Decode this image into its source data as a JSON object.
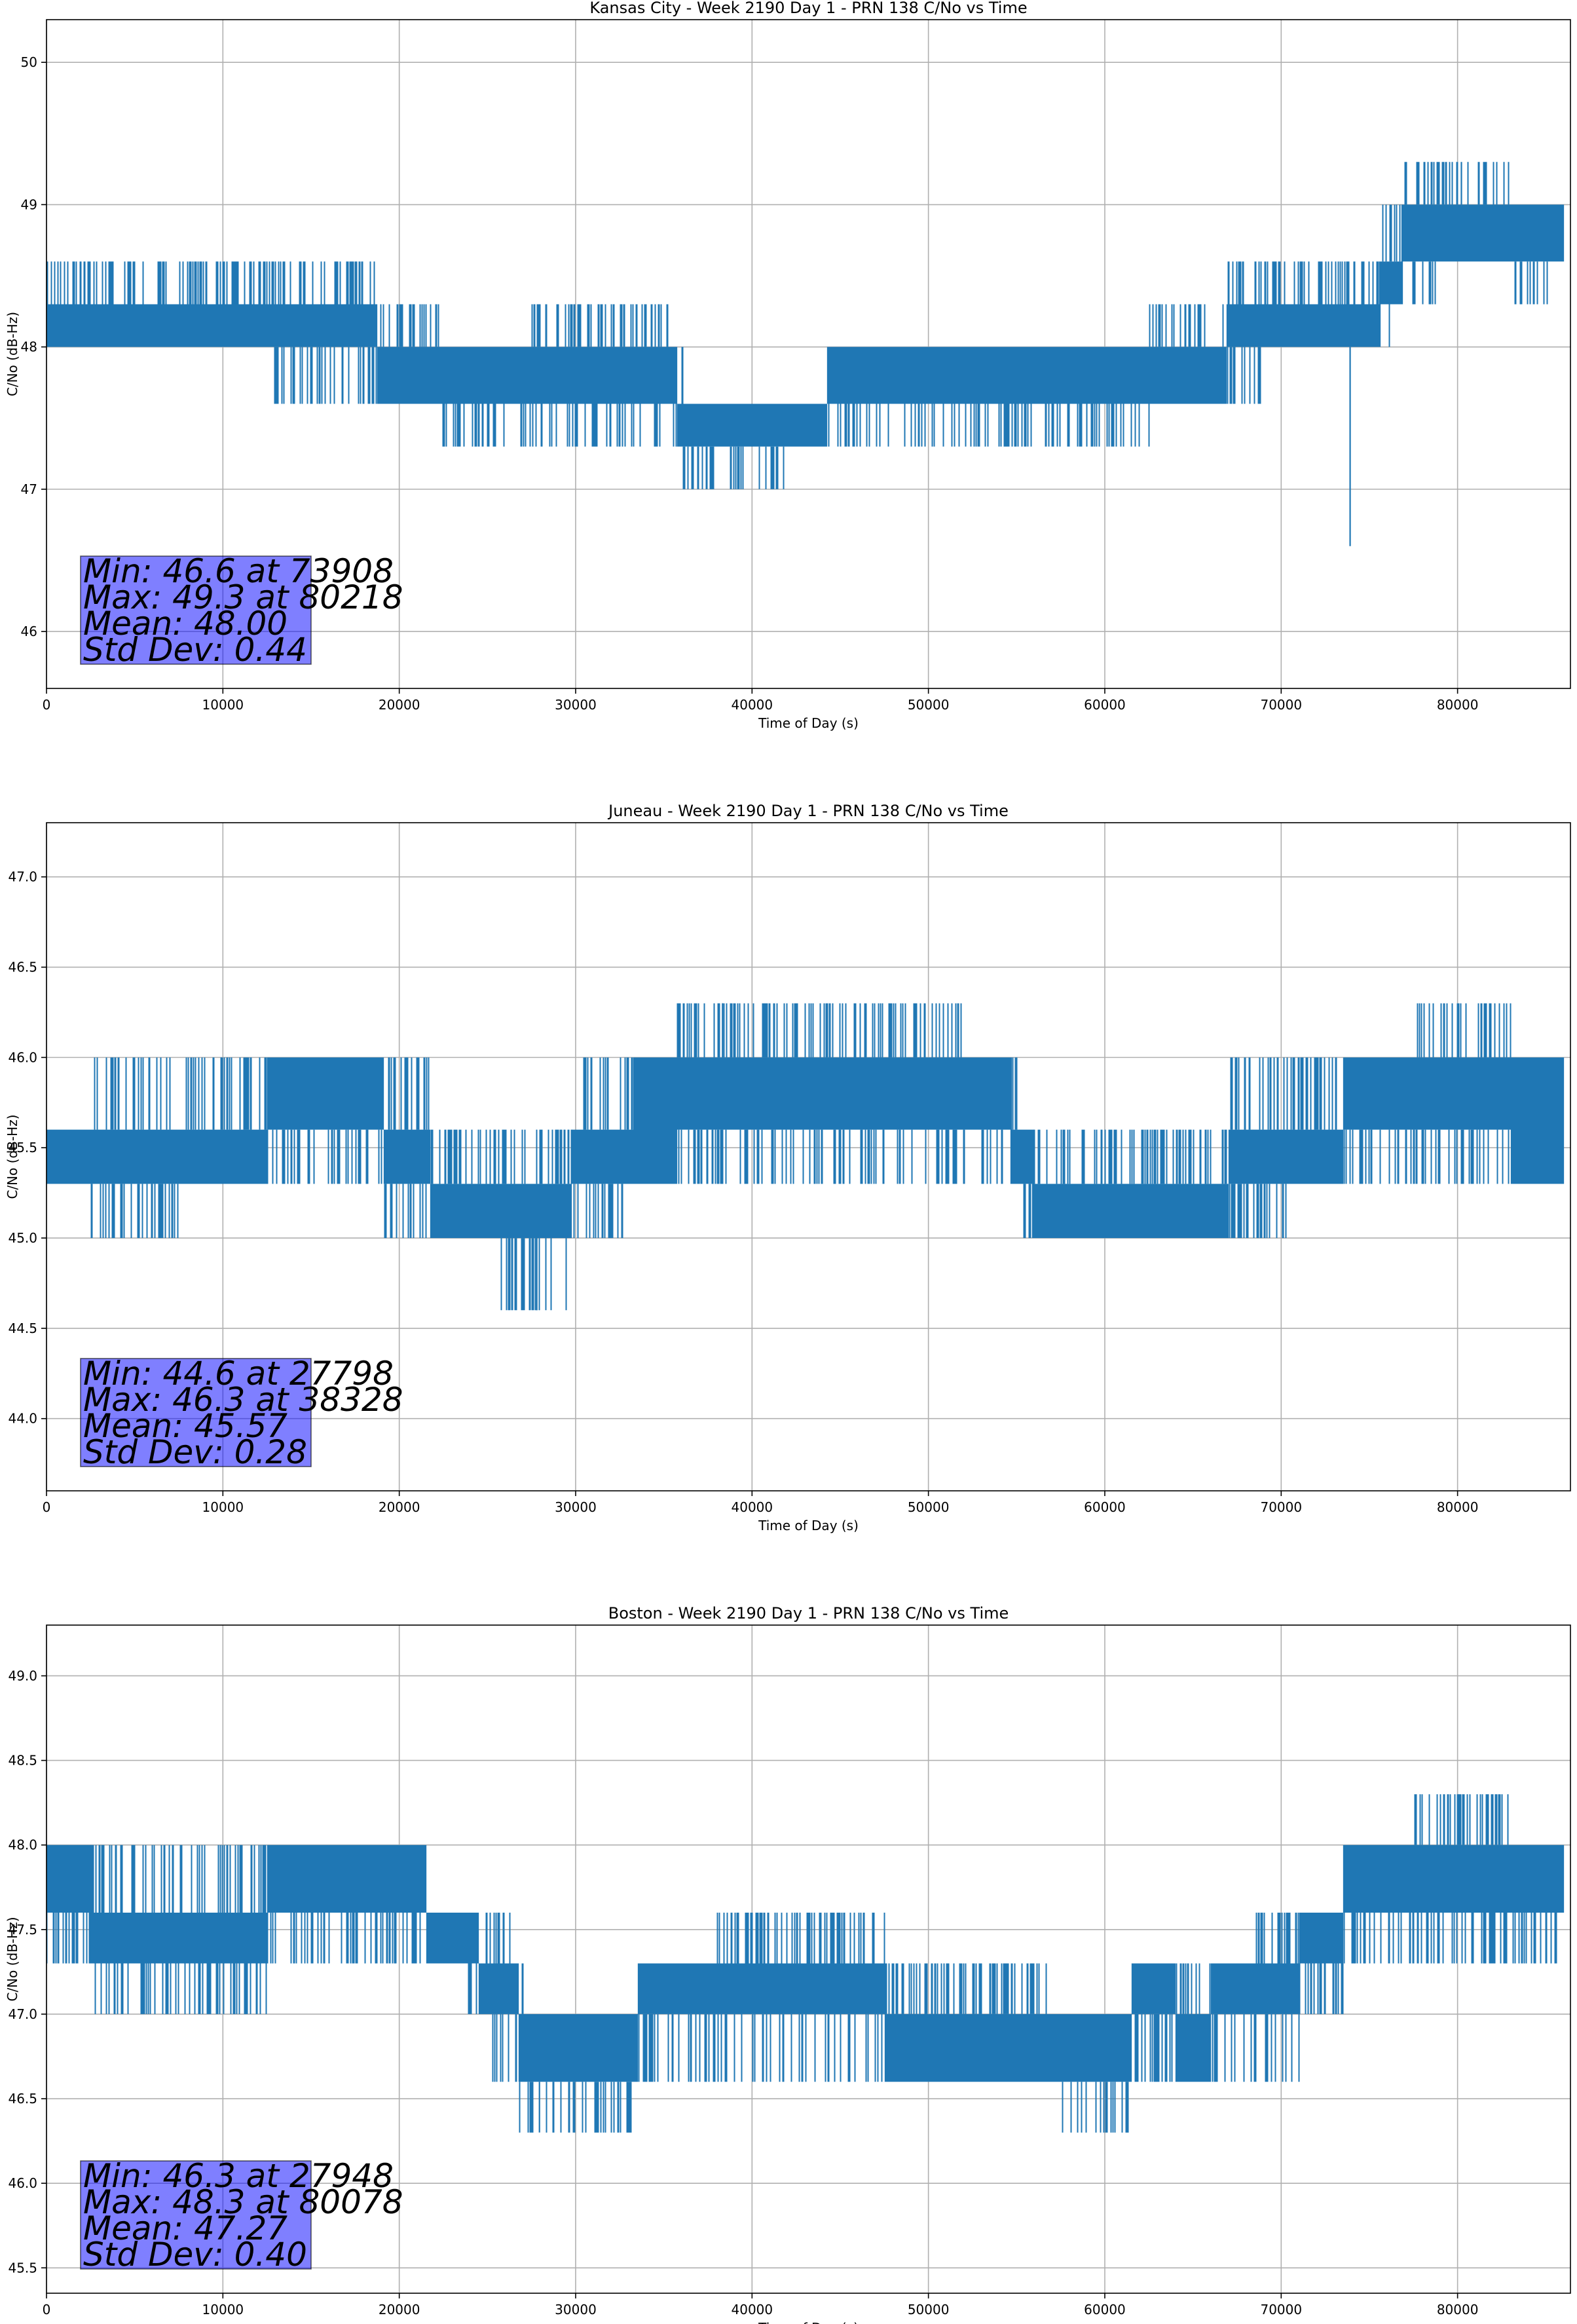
{
  "figure": {
    "series_color": "#1f77b4",
    "stat_box_color": "#0000ff"
  },
  "chart_data": [
    {
      "type": "line",
      "title": "Kansas City - Week 2190 Day 1 - PRN 138 C/No vs Time",
      "xlabel": "Time of Day (s)",
      "ylabel": "C/No (dB-Hz)",
      "xlim": [
        0,
        86400
      ],
      "ylim": [
        45.6,
        50.3
      ],
      "grid": true,
      "x_ticks": [
        0,
        10000,
        20000,
        30000,
        40000,
        50000,
        60000,
        70000,
        80000
      ],
      "x_tick_labels": [
        "0",
        "10000",
        "20000",
        "30000",
        "40000",
        "50000",
        "60000",
        "70000",
        "80000"
      ],
      "y_ticks": [
        46,
        47,
        48,
        49,
        50
      ],
      "y_tick_labels": [
        "46",
        "47",
        "48",
        "49",
        "50"
      ],
      "quantum": 0.3,
      "series_summary": {
        "x": [
          0,
          5000,
          10000,
          15000,
          18000,
          19500,
          25000,
          30000,
          35000,
          36500,
          40000,
          44000,
          44500,
          50000,
          55000,
          60000,
          65000,
          68800,
          70000,
          75000,
          77500,
          80000,
          86000
        ],
        "band_low": [
          48.0,
          48.0,
          48.0,
          48.0,
          48.0,
          47.6,
          47.6,
          47.6,
          47.6,
          47.3,
          47.3,
          47.3,
          47.6,
          47.6,
          47.6,
          47.6,
          47.6,
          48.0,
          48.0,
          48.0,
          48.6,
          48.6,
          48.6
        ],
        "band_high": [
          48.3,
          48.3,
          48.3,
          48.3,
          48.3,
          48.0,
          48.0,
          48.0,
          48.0,
          47.6,
          47.6,
          47.6,
          48.0,
          48.0,
          48.0,
          48.0,
          48.0,
          48.3,
          48.3,
          48.3,
          49.0,
          49.0,
          49.0
        ],
        "spike_high": [
          48.6,
          48.6,
          48.6,
          48.6,
          48.6,
          48.3,
          48.0,
          48.3,
          48.3,
          47.6,
          47.6,
          47.6,
          48.0,
          48.0,
          48.0,
          48.0,
          48.3,
          48.6,
          48.6,
          48.6,
          49.3,
          49.3,
          49.0
        ],
        "spike_low": [
          48.0,
          48.0,
          48.0,
          47.6,
          47.6,
          47.6,
          47.3,
          47.3,
          47.3,
          47.0,
          47.0,
          47.3,
          47.3,
          47.3,
          47.3,
          47.3,
          47.6,
          47.6,
          48.0,
          48.0,
          48.3,
          48.6,
          48.3
        ]
      },
      "min": {
        "value": 46.6,
        "x": 73908
      },
      "max": {
        "value": 49.3,
        "x": 80218
      },
      "stats": {
        "min_line": "Min: 46.6 at 73908",
        "max_line": "Max: 49.3 at 80218",
        "mean_line": "Mean: 48.00",
        "std_line": "Std Dev: 0.44"
      }
    },
    {
      "type": "line",
      "title": "Juneau - Week 2190 Day 1 - PRN 138 C/No vs Time",
      "xlabel": "Time of Day (s)",
      "ylabel": "C/No (dB-Hz)",
      "xlim": [
        0,
        86400
      ],
      "ylim": [
        43.6,
        47.3
      ],
      "grid": true,
      "x_ticks": [
        0,
        10000,
        20000,
        30000,
        40000,
        50000,
        60000,
        70000,
        80000
      ],
      "x_tick_labels": [
        "0",
        "10000",
        "20000",
        "30000",
        "40000",
        "50000",
        "60000",
        "70000",
        "80000"
      ],
      "y_ticks": [
        44.0,
        44.5,
        45.0,
        45.5,
        46.0,
        46.5,
        47.0
      ],
      "y_tick_labels": [
        "44.0",
        "44.5",
        "45.0",
        "45.5",
        "46.0",
        "46.5",
        "47.0"
      ],
      "quantum": 0.3,
      "series_summary": {
        "x": [
          0,
          5000,
          10000,
          15000,
          18200,
          20000,
          23500,
          28000,
          31500,
          35000,
          36500,
          40000,
          45000,
          50000,
          54000,
          56500,
          60000,
          65000,
          69000,
          72000,
          75000,
          80000,
          86000
        ],
        "band_low": [
          45.3,
          45.3,
          45.3,
          45.6,
          45.6,
          45.3,
          45.0,
          45.0,
          45.3,
          45.3,
          45.6,
          45.6,
          45.6,
          45.6,
          45.6,
          45.0,
          45.0,
          45.0,
          45.3,
          45.3,
          45.6,
          45.6,
          45.3
        ],
        "band_high": [
          45.6,
          45.6,
          45.6,
          46.0,
          46.0,
          45.6,
          45.3,
          45.3,
          45.6,
          46.0,
          46.0,
          46.0,
          46.0,
          46.0,
          46.0,
          45.3,
          45.3,
          45.3,
          45.6,
          45.6,
          46.0,
          46.0,
          46.0
        ],
        "spike_high": [
          45.6,
          46.0,
          46.0,
          46.0,
          46.0,
          46.0,
          45.6,
          45.6,
          46.0,
          46.0,
          46.3,
          46.3,
          46.3,
          46.3,
          46.0,
          45.6,
          45.6,
          45.6,
          46.0,
          46.0,
          46.0,
          46.3,
          46.0
        ],
        "spike_low": [
          45.3,
          45.0,
          45.3,
          45.3,
          45.3,
          45.0,
          45.0,
          44.6,
          45.0,
          45.3,
          45.3,
          45.3,
          45.3,
          45.3,
          45.3,
          45.0,
          45.0,
          45.0,
          45.0,
          45.3,
          45.3,
          45.3,
          45.3
        ]
      },
      "min": {
        "value": 44.6,
        "x": 27798
      },
      "max": {
        "value": 46.3,
        "x": 38328
      },
      "stats": {
        "min_line": "Min: 44.6 at 27798",
        "max_line": "Max: 46.3 at 38328",
        "mean_line": "Mean: 45.57",
        "std_line": "Std Dev: 0.28"
      }
    },
    {
      "type": "line",
      "title": "Boston - Week 2190 Day 1 - PRN 138 C/No vs Time",
      "xlabel": "Time of Day (s)",
      "ylabel": "C/No (dB-Hz)",
      "xlim": [
        0,
        86400
      ],
      "ylim": [
        45.35,
        49.3
      ],
      "grid": true,
      "x_ticks": [
        0,
        10000,
        20000,
        30000,
        40000,
        50000,
        60000,
        70000,
        80000
      ],
      "x_tick_labels": [
        "0",
        "10000",
        "20000",
        "30000",
        "40000",
        "50000",
        "60000",
        "70000",
        "80000"
      ],
      "y_ticks": [
        45.5,
        46.0,
        46.5,
        47.0,
        47.5,
        48.0,
        48.5,
        49.0
      ],
      "y_tick_labels": [
        "45.5",
        "46.0",
        "46.5",
        "47.0",
        "47.5",
        "48.0",
        "48.5",
        "49.0"
      ],
      "quantum": 0.3,
      "series_summary": {
        "x": [
          0,
          5000,
          10000,
          15000,
          20000,
          23000,
          26000,
          27500,
          31000,
          36000,
          40000,
          45000,
          50000,
          55000,
          60000,
          63000,
          65000,
          67000,
          70000,
          72000,
          75000,
          80000,
          86000
        ],
        "band_low": [
          47.6,
          47.3,
          47.3,
          47.6,
          47.6,
          47.3,
          47.0,
          46.6,
          46.6,
          47.0,
          47.0,
          47.0,
          46.6,
          46.6,
          46.6,
          47.0,
          46.6,
          47.0,
          47.0,
          47.3,
          47.6,
          47.6,
          47.6
        ],
        "band_high": [
          48.0,
          47.6,
          47.6,
          48.0,
          48.0,
          47.6,
          47.3,
          47.0,
          47.0,
          47.3,
          47.3,
          47.3,
          47.0,
          47.0,
          47.0,
          47.3,
          47.0,
          47.3,
          47.3,
          47.6,
          48.0,
          48.0,
          48.0
        ],
        "spike_high": [
          48.0,
          48.0,
          48.0,
          48.0,
          48.0,
          47.6,
          47.6,
          47.0,
          47.0,
          47.3,
          47.6,
          47.6,
          47.3,
          47.3,
          47.0,
          47.3,
          47.3,
          47.3,
          47.6,
          47.6,
          48.0,
          48.3,
          48.0
        ],
        "spike_low": [
          47.3,
          47.0,
          47.0,
          47.3,
          47.3,
          47.3,
          46.6,
          46.3,
          46.3,
          46.6,
          46.6,
          46.6,
          46.6,
          46.6,
          46.3,
          46.6,
          46.6,
          46.6,
          46.6,
          47.0,
          47.3,
          47.3,
          47.3
        ]
      },
      "min": {
        "value": 46.3,
        "x": 27948
      },
      "max": {
        "value": 48.3,
        "x": 80078
      },
      "stats": {
        "min_line": "Min: 46.3 at 27948",
        "max_line": "Max: 48.3 at 80078",
        "mean_line": "Mean: 47.27",
        "std_line": "Std Dev: 0.40"
      }
    }
  ]
}
